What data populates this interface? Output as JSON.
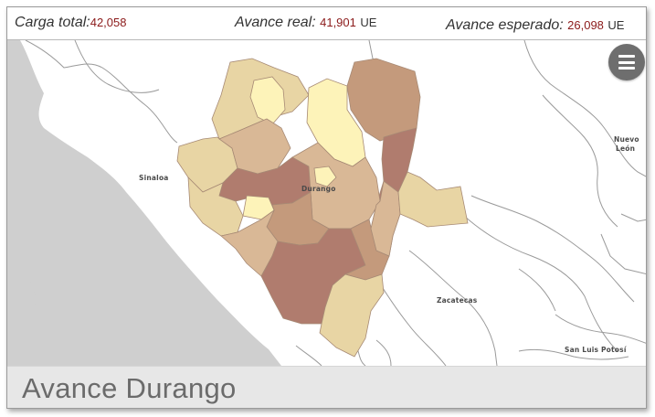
{
  "stats": {
    "carga_total": {
      "label": "Carga total:",
      "value": "42,058"
    },
    "avance_real": {
      "label": "Avance real:",
      "value": "41,901",
      "unit": "UE"
    },
    "avance_esperado": {
      "label": "Avance esperado:",
      "value": "26,098",
      "unit": "UE"
    }
  },
  "map": {
    "labels": {
      "sinaloa": "Sinaloa",
      "durango": "Durango",
      "nuevo_leon_1": "Nuevo",
      "nuevo_leon_2": "León",
      "zacatecas": "Zacatecas",
      "san_luis_potosi": "San Luis Potosí"
    },
    "colors": {
      "water": "#cfcfcf",
      "land": "#ffffff",
      "border": "#9a9a9a",
      "level_low": "#fdf3b9",
      "level_mid_low": "#e8d5a4",
      "level_mid": "#d9b896",
      "level_mid_high": "#c49a7c",
      "level_high": "#b07c6e"
    }
  },
  "menu": {
    "icon": "hamburger-menu-icon"
  },
  "footer": {
    "title": "Avance Durango"
  }
}
